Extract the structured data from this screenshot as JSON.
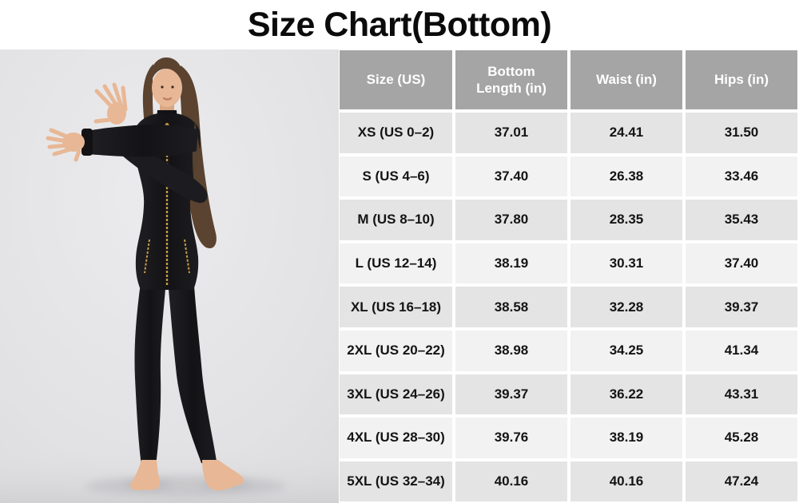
{
  "page": {
    "title": "Size Chart(Bottom)"
  },
  "photo": {
    "alt": "Model wearing a black zip-up sports jacket with gold zippers and black leggings, barefoot, stretching her arms in front of her chest"
  },
  "colors": {
    "title_text": "#0b0b0b",
    "header_bg": "#a5a5a5",
    "header_text": "#ffffff",
    "row_dark": "#e4e4e4",
    "row_light": "#f2f2f2",
    "cell_text": "#141414",
    "photo_bg": "#e3e3e5",
    "jacket": "#1a1a1e",
    "zipper_gold": "#c79a45",
    "skin": "#e8b795",
    "hair": "#5b4330"
  },
  "chart_data": {
    "type": "table",
    "title": "Size Chart(Bottom)",
    "columns": [
      "Size (US)",
      "Bottom Length (in)",
      "Waist (in)",
      "Hips (in)"
    ],
    "rows": [
      [
        "XS (US 0–2)",
        "37.01",
        "24.41",
        "31.50"
      ],
      [
        "S (US 4–6)",
        "37.40",
        "26.38",
        "33.46"
      ],
      [
        "M (US 8–10)",
        "37.80",
        "28.35",
        "35.43"
      ],
      [
        "L (US 12–14)",
        "38.19",
        "30.31",
        "37.40"
      ],
      [
        "XL (US 16–18)",
        "38.58",
        "32.28",
        "39.37"
      ],
      [
        "2XL (US 20–22)",
        "38.98",
        "34.25",
        "41.34"
      ],
      [
        "3XL (US 24–26)",
        "39.37",
        "36.22",
        "43.31"
      ],
      [
        "4XL (US 28–30)",
        "39.76",
        "38.19",
        "45.28"
      ],
      [
        "5XL (US 32–34)",
        "40.16",
        "40.16",
        "47.24"
      ]
    ]
  }
}
